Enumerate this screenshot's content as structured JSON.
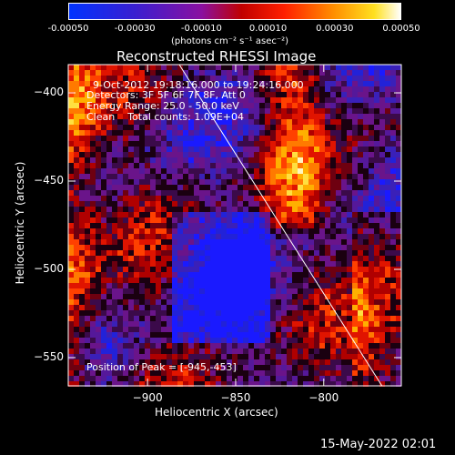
{
  "colorbar": {
    "ticks": [
      "-0.00050",
      "-0.00030",
      "-0.00010",
      "0.00010",
      "0.00030",
      "0.00050"
    ],
    "unit_label": "(photons cm⁻² s⁻¹ asec⁻²)"
  },
  "header": {
    "title": "Reconstructed RHESSI Image"
  },
  "info": {
    "time_range": "9-Oct-2012 19:18:16.000 to 19:24:16.000",
    "detectors": "Detectors: 3F 5F 6F 7F 8F, Att 0",
    "energy": "Energy Range: 25.0 - 50.0 keV",
    "clean": "Clean    Total counts: 1.09E+04",
    "peak": "Position of Peak = [-945,-453]"
  },
  "axes": {
    "xlabel": "Heliocentric X (arcsec)",
    "ylabel": "Heliocentric Y (arcsec)"
  },
  "footer": {
    "date": "15-May-2022 02:01"
  },
  "chart_data": {
    "type": "heatmap",
    "title": "Reconstructed RHESSI Image",
    "xlabel": "Heliocentric X (arcsec)",
    "ylabel": "Heliocentric Y (arcsec)",
    "xlim": [
      -945,
      -756
    ],
    "ylim": [
      -566,
      -384
    ],
    "x_ticks": [
      -900,
      -850,
      -800
    ],
    "y_ticks": [
      -400,
      -450,
      -500,
      -550
    ],
    "colorbar_range": [
      -0.0005,
      0.0005
    ],
    "colormap": "blue-purple-red-yellow-white",
    "limb_line": {
      "x": [
        -882,
        -767
      ],
      "y": [
        -384,
        -566
      ]
    },
    "peak_position": [
      -945,
      -453
    ]
  }
}
